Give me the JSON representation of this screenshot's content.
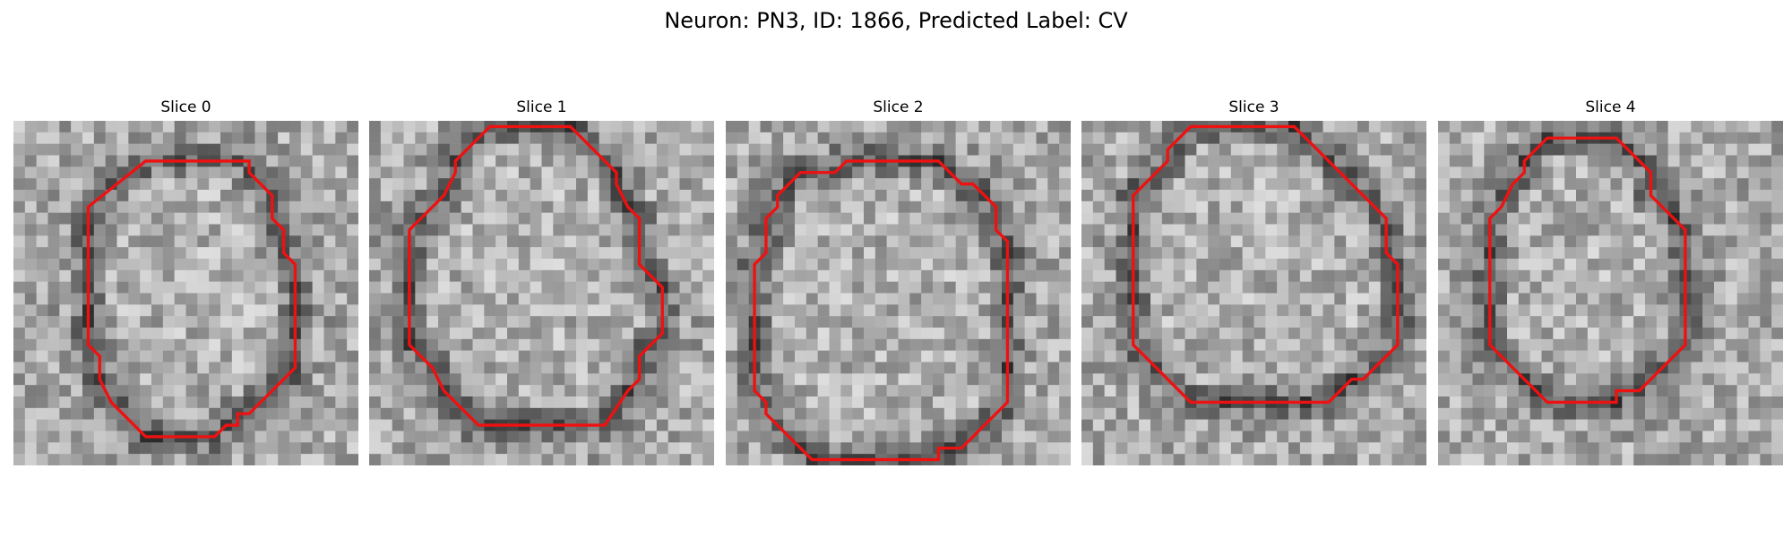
{
  "figure": {
    "title": "Neuron: PN3, ID: 1866, Predicted Label: CV"
  },
  "panels": [
    {
      "title": "Slice 0",
      "contour": [
        [
          11.5,
          3.5
        ],
        [
          20.5,
          3.5
        ],
        [
          20.5,
          4.5
        ],
        [
          22.5,
          6.5
        ],
        [
          22.5,
          8.5
        ],
        [
          23.5,
          9.5
        ],
        [
          23.5,
          11.5
        ],
        [
          24.5,
          12.5
        ],
        [
          24.5,
          21.5
        ],
        [
          20.5,
          25.5
        ],
        [
          19.5,
          25.5
        ],
        [
          19.5,
          26.5
        ],
        [
          18.5,
          26.5
        ],
        [
          17.5,
          27.5
        ],
        [
          11.5,
          27.5
        ],
        [
          8.5,
          24.5
        ],
        [
          7.5,
          22.5
        ],
        [
          7.5,
          20.5
        ],
        [
          6.5,
          19.5
        ],
        [
          6.5,
          7.5
        ]
      ]
    },
    {
      "title": "Slice 1",
      "contour": [
        [
          10.5,
          0.5
        ],
        [
          17.5,
          0.5
        ],
        [
          20.5,
          3.5
        ],
        [
          21.5,
          4.5
        ],
        [
          21.5,
          5.5
        ],
        [
          22.5,
          7.5
        ],
        [
          23.5,
          8.5
        ],
        [
          23.5,
          12.5
        ],
        [
          25.5,
          14.5
        ],
        [
          25.5,
          18.5
        ],
        [
          24.5,
          19.5
        ],
        [
          23.5,
          20.5
        ],
        [
          23.5,
          22.5
        ],
        [
          22.5,
          23.5
        ],
        [
          20.5,
          26.5
        ],
        [
          9.5,
          26.5
        ],
        [
          6.5,
          23.5
        ],
        [
          5.5,
          21.5
        ],
        [
          4.5,
          20.5
        ],
        [
          3.5,
          19.5
        ],
        [
          3.5,
          9.5
        ],
        [
          5.5,
          7.5
        ],
        [
          6.5,
          6.5
        ],
        [
          7.5,
          4.5
        ],
        [
          7.5,
          3.5
        ],
        [
          9.5,
          1.5
        ]
      ]
    },
    {
      "title": "Slice 2",
      "contour": [
        [
          6.5,
          4.5
        ],
        [
          9.5,
          4.5
        ],
        [
          10.5,
          3.5
        ],
        [
          18.5,
          3.5
        ],
        [
          20.5,
          5.5
        ],
        [
          21.5,
          5.5
        ],
        [
          23.5,
          7.5
        ],
        [
          23.5,
          9.5
        ],
        [
          24.5,
          10.5
        ],
        [
          24.5,
          24.5
        ],
        [
          23.5,
          25.5
        ],
        [
          22.5,
          26.5
        ],
        [
          21.5,
          27.5
        ],
        [
          20.5,
          28.5
        ],
        [
          18.5,
          28.5
        ],
        [
          18.5,
          29.5
        ],
        [
          7.5,
          29.5
        ],
        [
          3.5,
          25.5
        ],
        [
          3.5,
          24.5
        ],
        [
          2.5,
          23.5
        ],
        [
          2.5,
          12.5
        ],
        [
          3.5,
          11.5
        ],
        [
          3.5,
          8.5
        ],
        [
          4.5,
          7.5
        ],
        [
          4.5,
          6.5
        ]
      ]
    },
    {
      "title": "Slice 3",
      "contour": [
        [
          9.5,
          0.5
        ],
        [
          18.5,
          0.5
        ],
        [
          19.5,
          1.5
        ],
        [
          20.5,
          2.5
        ],
        [
          21.5,
          3.5
        ],
        [
          22.5,
          4.5
        ],
        [
          23.5,
          5.5
        ],
        [
          25.5,
          7.5
        ],
        [
          26.5,
          8.5
        ],
        [
          26.5,
          11.5
        ],
        [
          27.5,
          12.5
        ],
        [
          27.5,
          19.5
        ],
        [
          24.5,
          22.5
        ],
        [
          23.5,
          22.5
        ],
        [
          22.5,
          23.5
        ],
        [
          21.5,
          24.5
        ],
        [
          20.5,
          24.5
        ],
        [
          9.5,
          24.5
        ],
        [
          4.5,
          19.5
        ],
        [
          4.5,
          6.5
        ],
        [
          6.5,
          4.5
        ],
        [
          7.5,
          3.5
        ],
        [
          7.5,
          2.5
        ]
      ]
    },
    {
      "title": "Slice 4",
      "contour": [
        [
          9.5,
          1.5
        ],
        [
          15.5,
          1.5
        ],
        [
          18.5,
          4.5
        ],
        [
          18.5,
          6.5
        ],
        [
          21.5,
          9.5
        ],
        [
          21.5,
          19.5
        ],
        [
          17.5,
          23.5
        ],
        [
          16.5,
          23.5
        ],
        [
          15.5,
          23.5
        ],
        [
          15.5,
          24.5
        ],
        [
          9.5,
          24.5
        ],
        [
          4.5,
          19.5
        ],
        [
          4.5,
          8.5
        ],
        [
          5.5,
          7.5
        ],
        [
          6.5,
          5.5
        ],
        [
          7.5,
          4.5
        ],
        [
          7.5,
          3.5
        ]
      ]
    }
  ]
}
